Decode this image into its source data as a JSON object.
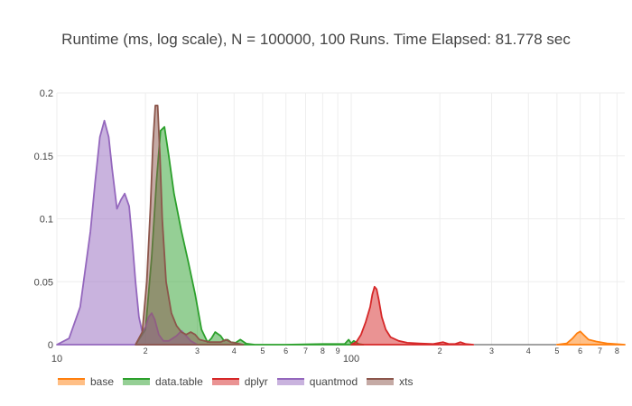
{
  "title": "Runtime (ms, log scale), N = 100000, 100 Runs. Time Elapsed: 81.778 sec",
  "chart_data": {
    "type": "area",
    "title": "Runtime (ms, log scale), N = 100000, 100 Runs. Time Elapsed: 81.778 sec",
    "xlabel": "",
    "ylabel": "",
    "x_scale": "log",
    "xlim": [
      10,
      850
    ],
    "ylim": [
      0,
      0.2
    ],
    "grid": true,
    "legend_position": "bottom-left",
    "y_ticks": [
      {
        "value": 0,
        "label": "0"
      },
      {
        "value": 0.05,
        "label": "0.05"
      },
      {
        "value": 0.1,
        "label": "0.1"
      },
      {
        "value": 0.15,
        "label": "0.15"
      },
      {
        "value": 0.2,
        "label": "0.2"
      }
    ],
    "x_major_ticks": [
      {
        "value": 10,
        "label": "10"
      },
      {
        "value": 100,
        "label": "100"
      }
    ],
    "x_minor_ticks": [
      {
        "value": 20,
        "label": "2"
      },
      {
        "value": 30,
        "label": "3"
      },
      {
        "value": 40,
        "label": "4"
      },
      {
        "value": 50,
        "label": "5"
      },
      {
        "value": 60,
        "label": "6"
      },
      {
        "value": 70,
        "label": "7"
      },
      {
        "value": 80,
        "label": "8"
      },
      {
        "value": 90,
        "label": "9"
      },
      {
        "value": 200,
        "label": "2"
      },
      {
        "value": 300,
        "label": "3"
      },
      {
        "value": 400,
        "label": "4"
      },
      {
        "value": 500,
        "label": "5"
      },
      {
        "value": 600,
        "label": "6"
      },
      {
        "value": 700,
        "label": "7"
      },
      {
        "value": 800,
        "label": "8"
      }
    ],
    "series": [
      {
        "name": "base",
        "color": "#ff7f0e",
        "x": [
          500,
          540,
          565,
          585,
          600,
          615,
          640,
          680,
          740,
          850
        ],
        "y": [
          0,
          0.001,
          0.005,
          0.009,
          0.0105,
          0.008,
          0.004,
          0.0025,
          0.001,
          0
        ]
      },
      {
        "name": "data.table",
        "color": "#2ca02c",
        "x": [
          18.5,
          20,
          21,
          21.8,
          22.5,
          23.2,
          24,
          25,
          26.5,
          28,
          29.5,
          31,
          32.5,
          33.5,
          34.5,
          36,
          37,
          38,
          39,
          40.5,
          42,
          44,
          47,
          60,
          80,
          95,
          98,
          100,
          102,
          106,
          110
        ],
        "y": [
          0,
          0.012,
          0.07,
          0.13,
          0.17,
          0.173,
          0.15,
          0.12,
          0.09,
          0.065,
          0.04,
          0.012,
          0.002,
          0.005,
          0.01,
          0.007,
          0.003,
          0.004,
          0.002,
          0.0015,
          0.004,
          0.0008,
          0,
          0,
          0.0005,
          0.0005,
          0.004,
          0.001,
          0.003,
          0.0005,
          0
        ]
      },
      {
        "name": "dplyr",
        "color": "#d62728",
        "x": [
          100,
          104,
          108,
          112,
          116,
          118,
          120,
          122,
          124,
          127,
          131,
          136,
          145,
          155,
          170,
          190,
          205,
          215,
          225,
          235,
          245,
          260
        ],
        "y": [
          0,
          0.002,
          0.008,
          0.018,
          0.03,
          0.04,
          0.046,
          0.044,
          0.036,
          0.022,
          0.012,
          0.006,
          0.003,
          0.0015,
          0.001,
          0.0005,
          0.002,
          0.0005,
          0.0005,
          0.002,
          0.0005,
          0
        ]
      },
      {
        "name": "quantmod",
        "color": "#9467bd",
        "x": [
          10,
          11,
          12,
          13,
          13.5,
          14,
          14.5,
          15,
          15.4,
          16,
          16.5,
          17,
          17.6,
          18,
          18.5,
          19,
          19.5,
          20,
          20.5,
          21,
          21.5,
          22.2,
          23,
          24,
          25.5,
          26.5,
          27.5,
          28.5,
          30
        ],
        "y": [
          0,
          0.005,
          0.03,
          0.09,
          0.13,
          0.165,
          0.178,
          0.165,
          0.14,
          0.108,
          0.115,
          0.12,
          0.11,
          0.085,
          0.05,
          0.022,
          0.01,
          0.014,
          0.022,
          0.025,
          0.02,
          0.008,
          0.003,
          0.003,
          0.007,
          0.011,
          0.007,
          0.003,
          0
        ]
      },
      {
        "name": "xts",
        "color": "#8c564b",
        "x": [
          18.5,
          19.5,
          20.2,
          20.8,
          21.2,
          21.6,
          22,
          22.4,
          22.8,
          23.5,
          24.5,
          25.5,
          26.5,
          27.5,
          28.5,
          29.5,
          30.5,
          33,
          36,
          37.5,
          39,
          41,
          43
        ],
        "y": [
          0,
          0.01,
          0.05,
          0.11,
          0.16,
          0.19,
          0.19,
          0.15,
          0.1,
          0.05,
          0.025,
          0.015,
          0.01,
          0.008,
          0.01,
          0.008,
          0.004,
          0.002,
          0.002,
          0.004,
          0.002,
          0.001,
          0
        ]
      }
    ]
  }
}
